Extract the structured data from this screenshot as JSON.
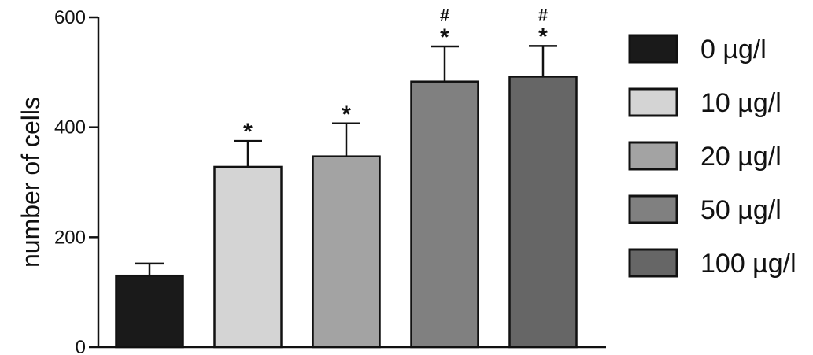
{
  "chart_data": {
    "type": "bar",
    "categories": [
      "0 µg/l",
      "10 µg/l",
      "20 µg/l",
      "50 µg/l",
      "100 µg/l"
    ],
    "values": [
      130,
      328,
      347,
      483,
      492
    ],
    "errors": [
      22,
      47,
      60,
      64,
      56
    ],
    "annotations": [
      [],
      [
        "*"
      ],
      [
        "*"
      ],
      [
        "#",
        "*"
      ],
      [
        "#",
        "*"
      ]
    ],
    "colors": [
      "#1a1a1a",
      "#d4d4d4",
      "#a3a3a3",
      "#808080",
      "#666666"
    ],
    "title": "",
    "xlabel": "",
    "ylabel": "number of cells",
    "ylim": [
      0,
      600
    ],
    "yticks": [
      0,
      200,
      400,
      600
    ],
    "legend": {
      "position": "right",
      "entries": [
        "0 µg/l",
        "10 µg/l",
        "20 µg/l",
        "50 µg/l",
        "100 µg/l"
      ]
    },
    "grid": false
  }
}
